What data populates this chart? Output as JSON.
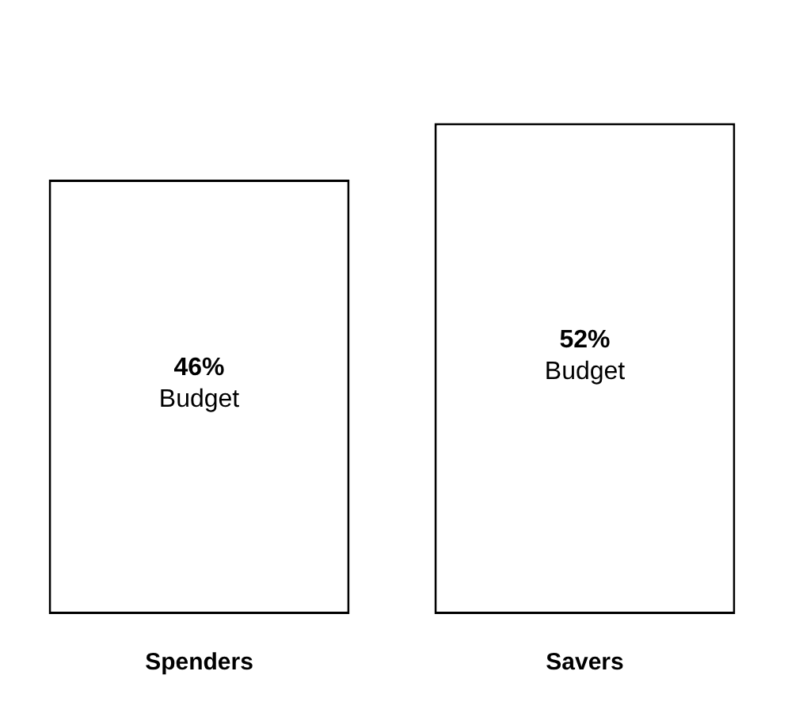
{
  "chart_data": {
    "type": "bar",
    "categories": [
      "Spenders",
      "Savers"
    ],
    "values": [
      46,
      52
    ],
    "color": "#ffffff",
    "value_labels": [
      "46%",
      "52%"
    ],
    "annotations": [
      "Budget",
      "Budget"
    ],
    "grid": false,
    "legend": false
  }
}
